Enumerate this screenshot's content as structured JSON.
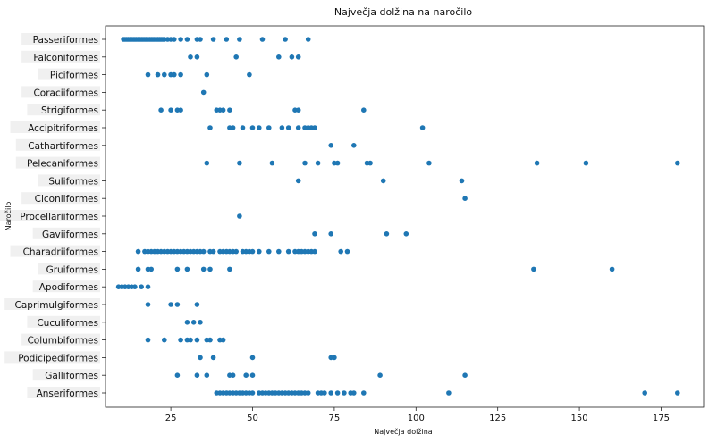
{
  "chart_data": {
    "type": "scatter",
    "title": "Največja dolžina na naročilo",
    "xlabel": "Največja dolžina",
    "ylabel": "Naročilo",
    "xlim": [
      5,
      188
    ],
    "x_ticks": [
      "25",
      "50",
      "75",
      "100",
      "125",
      "150",
      "175"
    ],
    "x_tick_values": [
      25,
      50,
      75,
      100,
      125,
      150,
      175
    ],
    "grid": false,
    "categories": [
      "Passeriformes",
      "Falconiformes",
      "Piciformes",
      "Coraciiformes",
      "Strigiformes",
      "Accipitriformes",
      "Cathartiformes",
      "Pelecaniformes",
      "Suliformes",
      "Ciconiiformes",
      "Procellariiformes",
      "Gaviiformes",
      "Charadriiformes",
      "Gruiformes",
      "Apodiformes",
      "Caprimulgiformes",
      "Cuculiformes",
      "Columbiformes",
      "Podicipediformes",
      "Galliformes",
      "Anseriformes"
    ],
    "color": "#1f77b4",
    "points": {
      "Passeriformes": [
        10.5,
        11,
        11.5,
        12,
        12.5,
        13,
        13.5,
        14,
        14.5,
        15,
        15.5,
        16,
        16.5,
        17,
        17.5,
        18,
        18.5,
        19,
        19.5,
        20,
        20.5,
        21,
        21.5,
        22,
        22.5,
        23,
        24,
        25,
        26,
        28,
        30,
        33,
        34,
        38,
        42,
        46,
        53,
        60,
        67
      ],
      "Falconiformes": [
        31,
        33,
        45,
        58,
        62,
        64
      ],
      "Piciformes": [
        18,
        21,
        23,
        25,
        26,
        28,
        36,
        49
      ],
      "Coraciiformes": [
        35
      ],
      "Strigiformes": [
        22,
        25,
        27,
        28,
        39,
        40,
        41,
        43,
        63,
        64,
        84
      ],
      "Accipitriformes": [
        37,
        43,
        44,
        47,
        50,
        52,
        55,
        59,
        61,
        64,
        66,
        67,
        68,
        69,
        102
      ],
      "Cathartiformes": [
        74,
        81
      ],
      "Pelecaniformes": [
        36,
        46,
        56,
        66,
        70,
        75,
        76,
        85,
        86,
        104,
        137,
        152,
        180
      ],
      "Suliformes": [
        64,
        90,
        114
      ],
      "Ciconiiformes": [
        115
      ],
      "Procellariiformes": [
        46
      ],
      "Gaviiformes": [
        69,
        74,
        91,
        97
      ],
      "Charadriiformes": [
        15,
        17,
        18,
        19,
        20,
        21,
        22,
        23,
        24,
        25,
        26,
        27,
        28,
        29,
        30,
        31,
        32,
        33,
        34,
        35,
        37,
        38,
        40,
        41,
        42,
        43,
        44,
        45,
        47,
        48,
        49,
        50,
        52,
        55,
        58,
        61,
        63,
        64,
        65,
        66,
        67,
        68,
        69,
        77,
        79
      ],
      "Gruiformes": [
        15,
        18,
        19,
        27,
        30,
        35,
        37,
        43,
        136,
        160
      ],
      "Apodiformes": [
        9,
        10,
        11,
        12,
        13,
        14,
        16,
        18
      ],
      "Caprimulgiformes": [
        18,
        25,
        27,
        33
      ],
      "Cuculiformes": [
        30,
        32,
        34
      ],
      "Columbiformes": [
        18,
        23,
        28,
        30,
        31,
        33,
        36,
        37,
        40,
        41
      ],
      "Podicipediformes": [
        34,
        38,
        50,
        74,
        75
      ],
      "Galliformes": [
        27,
        33,
        36,
        43,
        44,
        48,
        50,
        89,
        115
      ],
      "Anseriformes": [
        39,
        40,
        41,
        42,
        43,
        44,
        45,
        46,
        47,
        48,
        49,
        50,
        52,
        53,
        54,
        55,
        56,
        57,
        58,
        59,
        60,
        61,
        62,
        63,
        64,
        65,
        66,
        67,
        70,
        71,
        72,
        74,
        76,
        78,
        80,
        81,
        84,
        110,
        170,
        180
      ]
    }
  }
}
